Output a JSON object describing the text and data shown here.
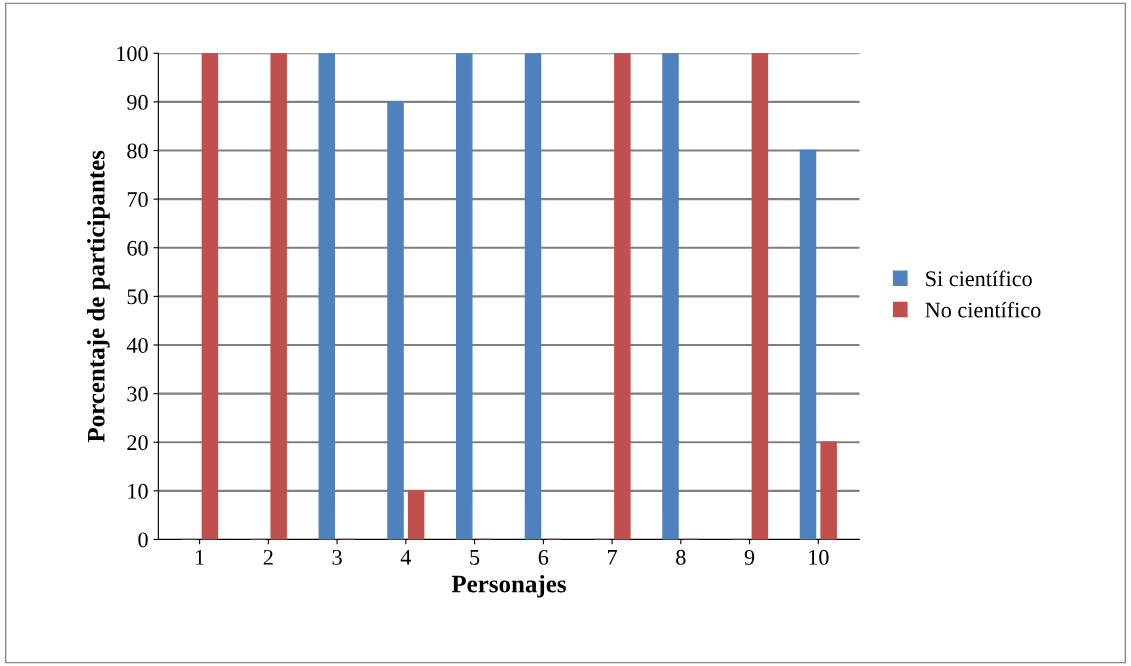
{
  "chart_data": {
    "type": "bar",
    "xlabel": "Personajes",
    "ylabel": "Porcentaje de participantes",
    "categories": [
      "1",
      "2",
      "3",
      "4",
      "5",
      "6",
      "7",
      "8",
      "9",
      "10"
    ],
    "series": [
      {
        "name": "Si científico",
        "color": "#4f81bd",
        "values": [
          0,
          0,
          100,
          90,
          100,
          100,
          0,
          100,
          0,
          80
        ]
      },
      {
        "name": "No científico",
        "color": "#c0504d",
        "values": [
          100,
          100,
          0,
          10,
          0,
          0,
          100,
          0,
          100,
          20
        ]
      }
    ],
    "ylim": [
      0,
      100
    ],
    "yticks": [
      0,
      10,
      20,
      30,
      40,
      50,
      60,
      70,
      80,
      90,
      100
    ],
    "grid": "y",
    "legend": "right"
  }
}
